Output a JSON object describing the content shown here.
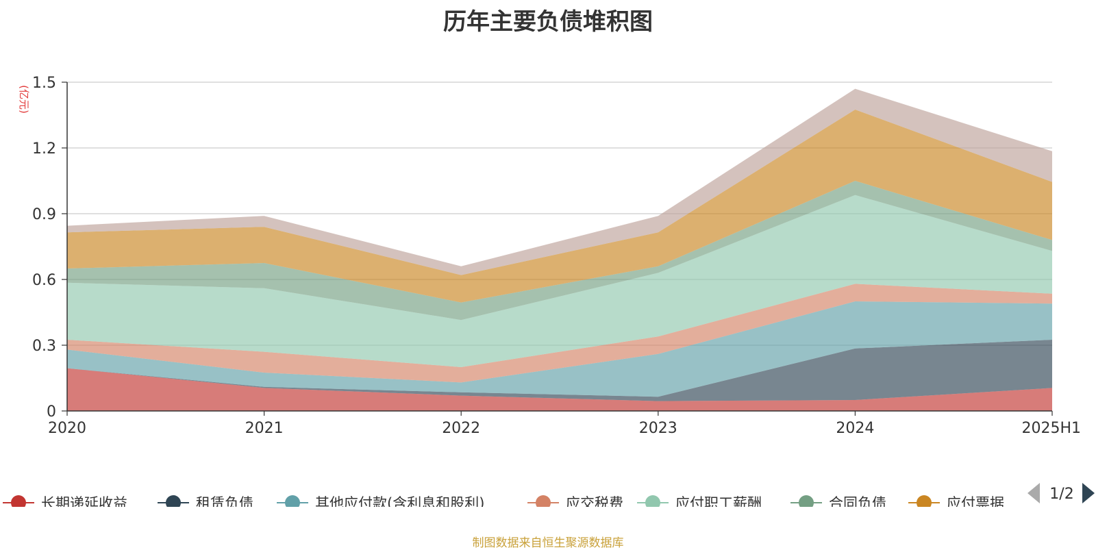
{
  "chart_data": {
    "type": "area",
    "stacked": true,
    "title": "历年主要负债堆积图",
    "unit_label": "(亿元)",
    "categories": [
      "2020",
      "2021",
      "2022",
      "2023",
      "2024",
      "2025H1"
    ],
    "ylim": [
      0,
      1.5
    ],
    "yticks": [
      "0",
      "0.3",
      "0.6",
      "0.9",
      "1.2",
      "1.5"
    ],
    "grid": true,
    "legend_position": "bottom",
    "series": [
      {
        "name": "长期递延收益",
        "color": "#c23531",
        "values": [
          0.195,
          0.105,
          0.07,
          0.045,
          0.05,
          0.105
        ]
      },
      {
        "name": "租赁负债",
        "color": "#2f4554",
        "values": [
          0.0,
          0.005,
          0.015,
          0.02,
          0.235,
          0.22
        ]
      },
      {
        "name": "其他应付款(含利息和股利)",
        "color": "#61a0a8",
        "values": [
          0.085,
          0.065,
          0.045,
          0.195,
          0.215,
          0.165
        ]
      },
      {
        "name": "应交税费",
        "color": "#d48265",
        "values": [
          0.045,
          0.095,
          0.07,
          0.08,
          0.08,
          0.045
        ]
      },
      {
        "name": "应付职工薪酬",
        "color": "#91c7ae",
        "values": [
          0.26,
          0.29,
          0.215,
          0.29,
          0.405,
          0.195
        ]
      },
      {
        "name": "合同负债",
        "color": "#749f83",
        "values": [
          0.065,
          0.115,
          0.08,
          0.03,
          0.065,
          0.05
        ]
      },
      {
        "name": "应付票据",
        "color": "#ca8622",
        "values": [
          0.165,
          0.165,
          0.125,
          0.155,
          0.325,
          0.265
        ]
      },
      {
        "name": "",
        "color": "#bda29a",
        "values": [
          0.03,
          0.05,
          0.04,
          0.075,
          0.095,
          0.14
        ]
      }
    ]
  },
  "legend": {
    "visible_items": [
      "长期递延收益",
      "租赁负债",
      "其他应付款(含利息和股利)",
      "应交税费",
      "应付职工薪酬",
      "合同负债",
      "应付票据"
    ],
    "page_indicator": "1/2"
  },
  "source_note": "制图数据来自恒生聚源数据库"
}
